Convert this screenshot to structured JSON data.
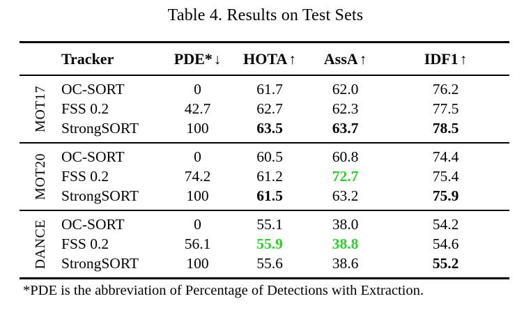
{
  "title": "Table 4. Results on Test Sets",
  "footnote": "*PDE is the abbreviation of Percentage of Detections with Extraction.",
  "colors": {
    "highlight_green": "#2bd12b",
    "text": "#000000",
    "background": "#ffffff"
  },
  "table": {
    "columns": [
      {
        "label": "Tracker",
        "arrow": ""
      },
      {
        "label": "PDE*",
        "arrow": "↓"
      },
      {
        "label": "HOTA",
        "arrow": "↑"
      },
      {
        "label": "AssA",
        "arrow": "↑"
      },
      {
        "label": "IDF1",
        "arrow": "↑"
      }
    ],
    "sections": [
      {
        "group": "MOT17",
        "rows": [
          {
            "tracker": "OC-SORT",
            "pde": "0",
            "hota": "61.7",
            "assa": "62.0",
            "idf1": "76.2"
          },
          {
            "tracker": "FSS 0.2",
            "pde": "42.7",
            "hota": "62.7",
            "assa": "62.3",
            "idf1": "77.5"
          },
          {
            "tracker": "StrongSORT",
            "pde": "100",
            "hota": "63.5",
            "assa": "63.7",
            "idf1": "78.5"
          }
        ]
      },
      {
        "group": "MOT20",
        "rows": [
          {
            "tracker": "OC-SORT",
            "pde": "0",
            "hota": "60.5",
            "assa": "60.8",
            "idf1": "74.4"
          },
          {
            "tracker": "FSS 0.2",
            "pde": "74.2",
            "hota": "61.2",
            "assa": "72.7",
            "idf1": "75.4"
          },
          {
            "tracker": "StrongSORT",
            "pde": "100",
            "hota": "61.5",
            "assa": "63.2",
            "idf1": "75.9"
          }
        ]
      },
      {
        "group": "DANCE",
        "rows": [
          {
            "tracker": "OC-SORT",
            "pde": "0",
            "hota": "55.1",
            "assa": "38.0",
            "idf1": "54.2"
          },
          {
            "tracker": "FSS 0.2",
            "pde": "56.1",
            "hota": "55.9",
            "assa": "38.8",
            "idf1": "54.6"
          },
          {
            "tracker": "StrongSORT",
            "pde": "100",
            "hota": "55.6",
            "assa": "38.6",
            "idf1": "55.2"
          }
        ]
      }
    ]
  }
}
